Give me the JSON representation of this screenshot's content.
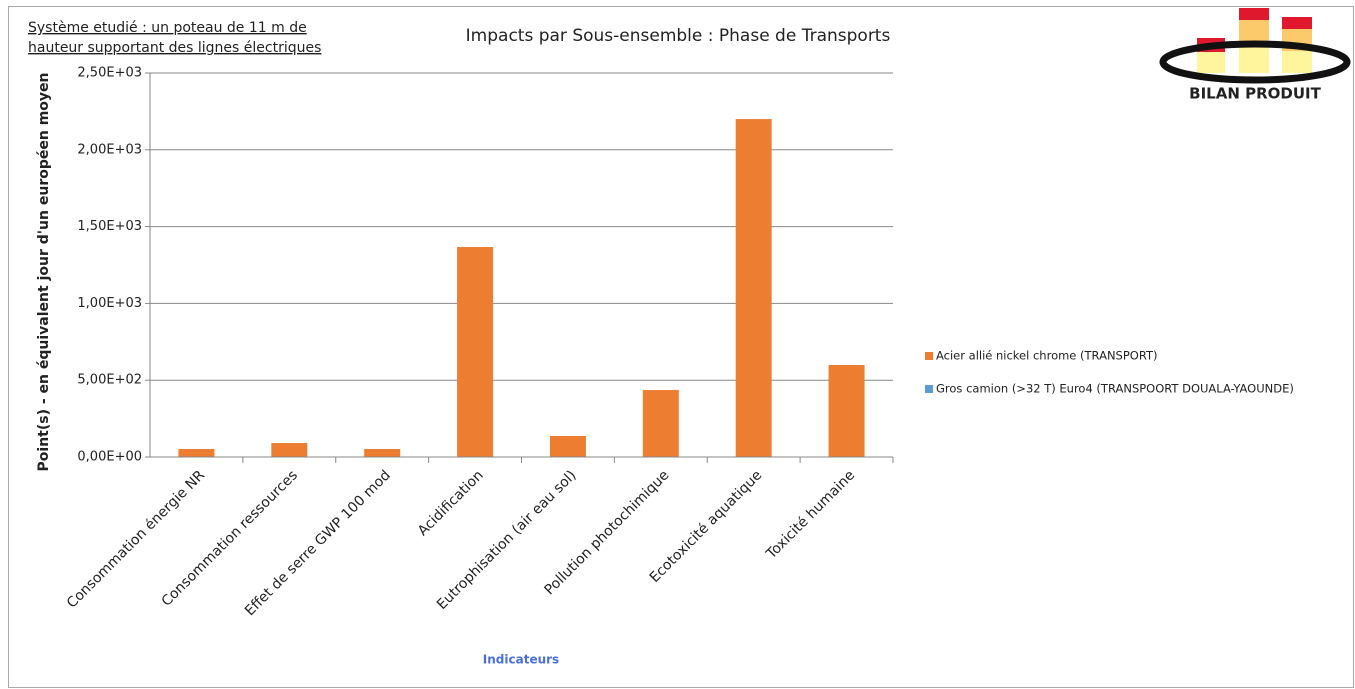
{
  "chart_data": {
    "type": "stacked_bar",
    "title": "Impacts par Sous-ensemble : Phase de Transports",
    "annotation": [
      "Système etudié : un poteau de 11 m de",
      "hauteur supportant des lignes électriques"
    ],
    "logo": "BILAN PRODUIT",
    "y_label": "Point(s)  - en équivalent jour d'un européen moyen",
    "x_label": "Indicateurs",
    "categories": [
      "Consommation énergie NR",
      "Consommation ressources",
      "Effet de serre GWP 100 mod",
      "Acidification",
      "Eutrophisation (air eau sol)",
      "Pollution photochimique",
      "Ecotoxicité aquatique",
      "Toxicité humaine"
    ],
    "series": [
      {
        "name": "Acier allié nickel chrome (TRANSPORT)",
        "color": "#ed7d31",
        "values": [
          52,
          91,
          52,
          1367,
          137,
          436,
          2200,
          599
        ]
      },
      {
        "name": "Gros camion (>32 T) Euro4  (TRANSPOORT DOUALA-YAOUNDE)",
        "color": "#5b9bd5",
        "values": [
          0,
          0,
          0,
          0,
          0,
          0,
          0,
          0
        ]
      }
    ],
    "ylim": [
      0,
      2500
    ],
    "yticks": [
      {
        "value": 0,
        "label": "0,00E+00"
      },
      {
        "value": 500,
        "label": "5,00E+02"
      },
      {
        "value": 1000,
        "label": "1,00E+03"
      },
      {
        "value": 1500,
        "label": "1,50E+03"
      },
      {
        "value": 2000,
        "label": "2,00E+03"
      },
      {
        "value": 2500,
        "label": "2,50E+03"
      }
    ],
    "grid": true,
    "legend": "right"
  }
}
